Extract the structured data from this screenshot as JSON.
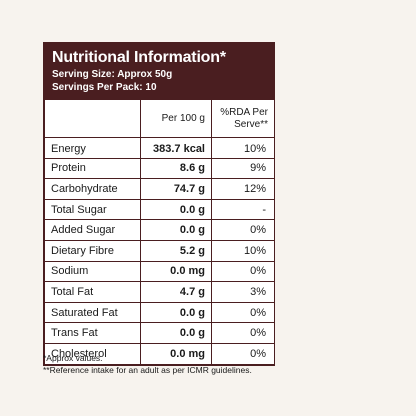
{
  "header": {
    "title": "Nutritional Information*",
    "serving_size": "Serving Size: Approx 50g",
    "servings_per_pack": "Servings Per Pack: 10"
  },
  "table": {
    "columns": [
      "",
      "Per 100 g",
      "%RDA Per Serve**"
    ],
    "rows": [
      {
        "name": "Energy",
        "per100": "383.7 kcal",
        "rda": "10%"
      },
      {
        "name": "Protein",
        "per100": "8.6 g",
        "rda": "9%"
      },
      {
        "name": "Carbohydrate",
        "per100": "74.7 g",
        "rda": "12%"
      },
      {
        "name": "Total Sugar",
        "per100": "0.0 g",
        "rda": "-"
      },
      {
        "name": "Added Sugar",
        "per100": "0.0 g",
        "rda": "0%"
      },
      {
        "name": "Dietary Fibre",
        "per100": "5.2 g",
        "rda": "10%"
      },
      {
        "name": "Sodium",
        "per100": "0.0 mg",
        "rda": "0%"
      },
      {
        "name": "Total Fat",
        "per100": "4.7 g",
        "rda": "3%"
      },
      {
        "name": "Saturated Fat",
        "per100": "0.0 g",
        "rda": "0%"
      },
      {
        "name": "Trans Fat",
        "per100": "0.0 g",
        "rda": "0%"
      },
      {
        "name": "Cholesterol",
        "per100": "0.0 mg",
        "rda": "0%"
      }
    ]
  },
  "footnotes": {
    "approx": "*Approx values.",
    "reference": "**Reference intake for an adult as per ICMR guidelines."
  },
  "colors": {
    "header_bg": "#4a1e20",
    "page_bg": "#f7f3ee"
  }
}
